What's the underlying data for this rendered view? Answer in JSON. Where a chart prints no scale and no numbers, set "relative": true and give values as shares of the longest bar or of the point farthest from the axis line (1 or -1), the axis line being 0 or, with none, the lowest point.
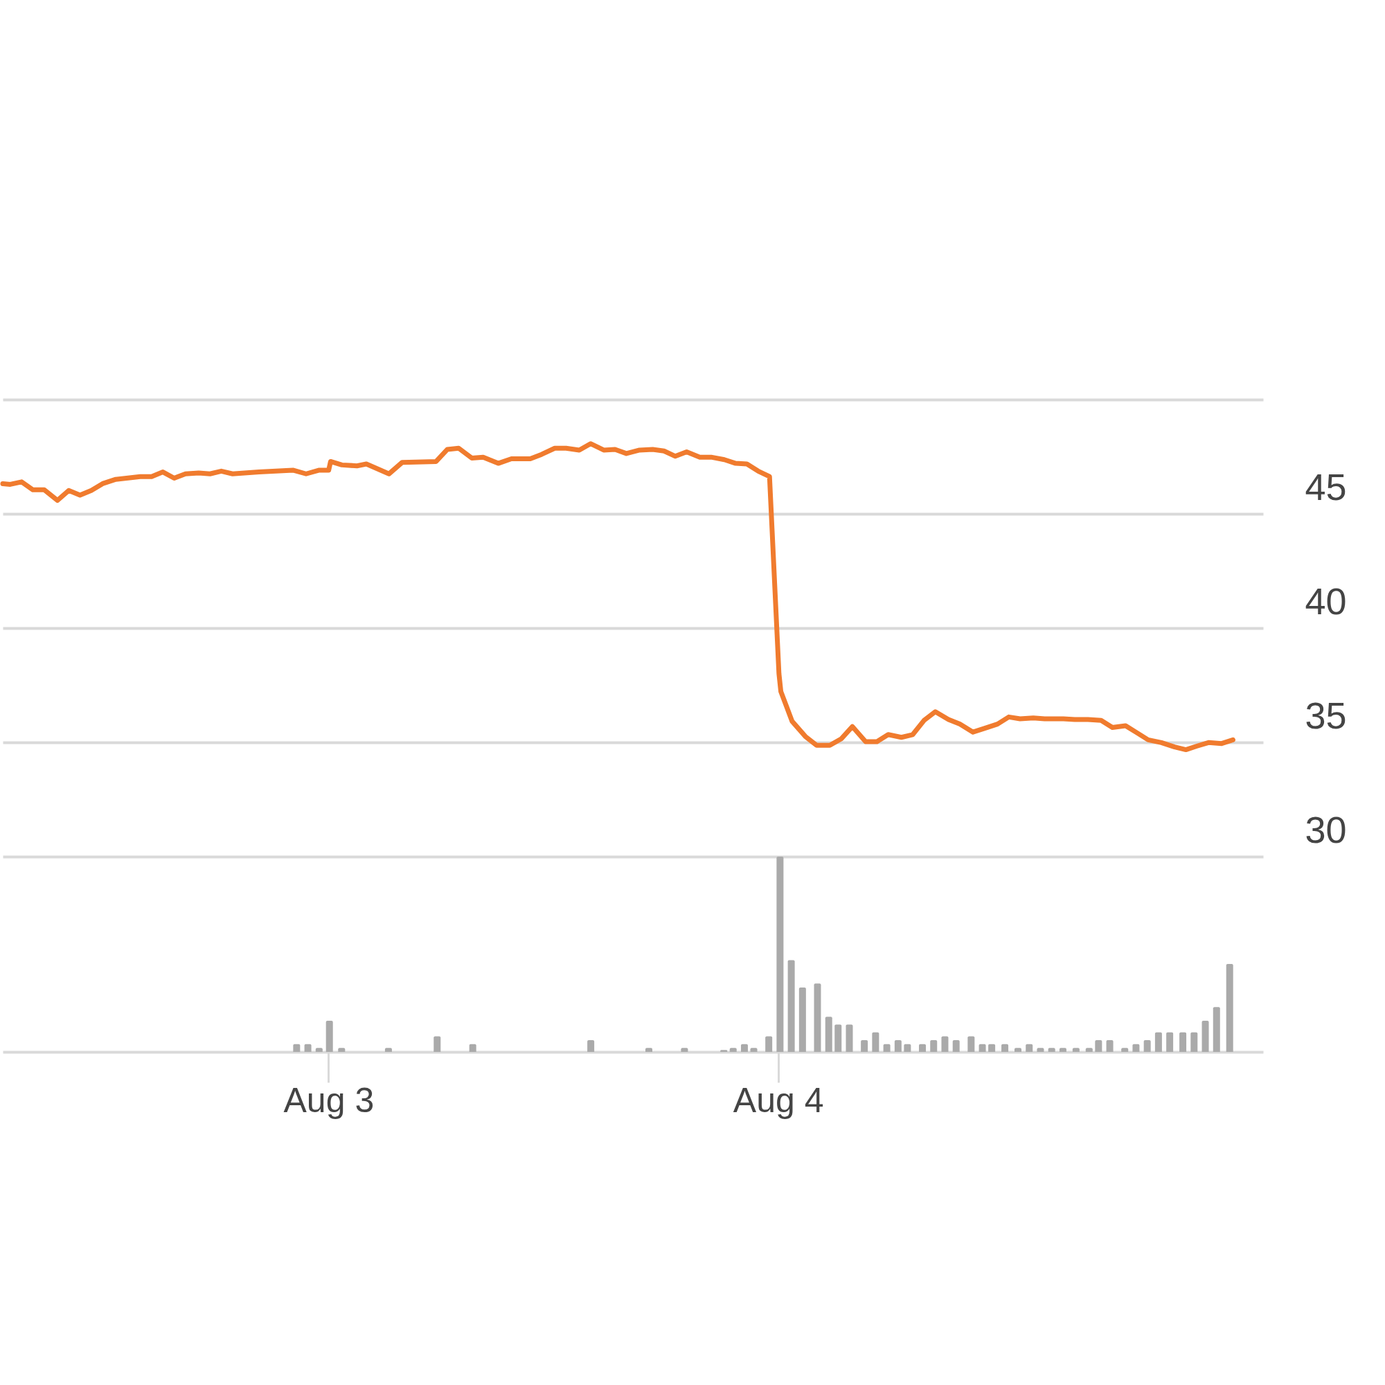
{
  "chart_data": [
    {
      "type": "line",
      "tick_labels": "y",
      "grid": "y",
      "xlim": [
        "--08-02T06:48",
        "--08-05T01:42"
      ],
      "xticks": [
        {
          "value": "--08-03",
          "label": "Aug 3"
        },
        {
          "value": "--08-04",
          "label": "Aug 4"
        }
      ],
      "ylim": [
        30,
        50
      ],
      "yticks": [
        30,
        35,
        40,
        45,
        {
          "value": 50,
          "label": null
        }
      ],
      "series": [
        {
          "color": "#f07b2e",
          "x": [
            "--08-02T06:48",
            "--08-02T07:12",
            "--08-02T07:48",
            "--08-02T08:24",
            "--08-02T09:00",
            "--08-02T09:42",
            "--08-02T10:18",
            "--08-02T10:54",
            "--08-02T11:30",
            "--08-02T12:06",
            "--08-02T12:48",
            "--08-02T14:06",
            "--08-02T14:42",
            "--08-02T15:18",
            "--08-02T15:54",
            "--08-02T16:30",
            "--08-02T17:12",
            "--08-02T17:48",
            "--08-02T18:24",
            "--08-02T19:00",
            "--08-02T20:24",
            "--08-02T22:12",
            "--08-02T22:54",
            "--08-02T23:36",
            "--08-03T00:06",
            "--08-03T00:12",
            "--08-03T00:48",
            "--08-03T01:36",
            "--08-03T02:06",
            "--08-03T03:18",
            "--08-03T04:00",
            "--08-03T05:48",
            "--08-03T06:24",
            "--08-03T07:00",
            "--08-03T07:42",
            "--08-03T08:18",
            "--08-03T09:06",
            "--08-03T09:48",
            "--08-03T10:48",
            "--08-03T11:24",
            "--08-03T12:06",
            "--08-03T12:42",
            "--08-03T13:24",
            "--08-03T14:00",
            "--08-03T14:42",
            "--08-03T15:18",
            "--08-03T15:54",
            "--08-03T16:36",
            "--08-03T17:18",
            "--08-03T17:54",
            "--08-03T18:30",
            "--08-03T19:06",
            "--08-03T19:48",
            "--08-03T20:24",
            "--08-03T21:06",
            "--08-03T21:42",
            "--08-03T22:18",
            "--08-03T22:54",
            "--08-03T23:30",
            "--08-04T00:00",
            "--08-04T00:06",
            "--08-04T00:42",
            "--08-04T01:24",
            "--08-04T02:00",
            "--08-04T02:42",
            "--08-04T03:18",
            "--08-04T03:54",
            "--08-04T04:36",
            "--08-04T05:12",
            "--08-04T05:48",
            "--08-04T06:30",
            "--08-04T07:06",
            "--08-04T07:42",
            "--08-04T08:18",
            "--08-04T09:00",
            "--08-04T09:36",
            "--08-04T10:18",
            "--08-04T10:54",
            "--08-04T11:36",
            "--08-04T12:12",
            "--08-04T12:48",
            "--08-04T13:30",
            "--08-04T14:06",
            "--08-04T15:06",
            "--08-04T15:42",
            "--08-04T16:24",
            "--08-04T17:06",
            "--08-04T17:42",
            "--08-04T18:24",
            "--08-04T19:00",
            "--08-04T19:36",
            "--08-04T20:18",
            "--08-04T21:00",
            "--08-04T21:36",
            "--08-04T22:12",
            "--08-04T22:48",
            "--08-04T23:30",
            "--08-05T00:06"
          ],
          "values": [
            46.32,
            46.29,
            46.4,
            46.05,
            46.05,
            45.59,
            46.02,
            45.82,
            46.02,
            46.32,
            46.51,
            46.63,
            46.63,
            46.83,
            46.56,
            46.75,
            46.79,
            46.75,
            46.87,
            46.75,
            46.83,
            46.91,
            46.75,
            46.91,
            46.91,
            47.29,
            47.14,
            47.1,
            47.18,
            46.75,
            47.25,
            47.29,
            47.82,
            47.87,
            47.44,
            47.48,
            47.21,
            47.41,
            47.41,
            47.6,
            47.87,
            47.87,
            47.79,
            48.07,
            47.79,
            47.82,
            47.64,
            47.79,
            47.82,
            47.75,
            47.52,
            47.71,
            47.48,
            47.48,
            47.37,
            47.21,
            47.18,
            46.87,
            46.63,
            38.01,
            37.23,
            35.92,
            35.26,
            34.87,
            34.87,
            35.15,
            35.69,
            35.03,
            35.03,
            35.34,
            35.22,
            35.34,
            35.96,
            36.34,
            36.0,
            35.8,
            35.45,
            35.61,
            35.8,
            36.11,
            36.03,
            36.07,
            36.03,
            36.03,
            36.0,
            36.0,
            35.96,
            35.65,
            35.73,
            35.42,
            35.11,
            34.99,
            34.8,
            34.68,
            34.84,
            34.99,
            34.95,
            35.11
          ]
        }
      ]
    },
    {
      "type": "bar",
      "relative": true,
      "tick_labels": "x",
      "xlim": [
        "--08-02T06:48",
        "--08-05T01:42"
      ],
      "xticks": [
        {
          "value": "--08-03",
          "label": "Aug 3"
        },
        {
          "value": "--08-04",
          "label": "Aug 4"
        }
      ],
      "series": [
        {
          "color": "#aaaaaa",
          "x": [
            "--08-02T22:18",
            "--08-02T22:54",
            "--08-02T23:30",
            "--08-03T00:03",
            "--08-03T00:42",
            "--08-03T03:12",
            "--08-03T05:48",
            "--08-03T07:42",
            "--08-03T14:00",
            "--08-03T17:06",
            "--08-03T19:00",
            "--08-03T21:06",
            "--08-03T21:36",
            "--08-03T22:12",
            "--08-03T22:42",
            "--08-03T23:30",
            "--08-04T00:06",
            "--08-04T00:42",
            "--08-04T01:18",
            "--08-04T02:06",
            "--08-04T02:42",
            "--08-04T03:12",
            "--08-04T03:48",
            "--08-04T04:36",
            "--08-04T05:12",
            "--08-04T05:48",
            "--08-04T06:24",
            "--08-04T06:54",
            "--08-04T07:42",
            "--08-04T08:18",
            "--08-04T08:54",
            "--08-04T09:30",
            "--08-04T10:18",
            "--08-04T10:54",
            "--08-04T11:24",
            "--08-04T12:06",
            "--08-04T12:48",
            "--08-04T13:24",
            "--08-04T14:00",
            "--08-04T14:36",
            "--08-04T15:12",
            "--08-04T15:54",
            "--08-04T16:36",
            "--08-04T17:06",
            "--08-04T17:42",
            "--08-04T18:30",
            "--08-04T19:06",
            "--08-04T19:42",
            "--08-04T20:18",
            "--08-04T20:54",
            "--08-04T21:36",
            "--08-04T22:12",
            "--08-04T22:48",
            "--08-04T23:24",
            "--08-05T00:06"
          ],
          "values": [
            0.04,
            0.04,
            0.02,
            0.16,
            0.02,
            0.02,
            0.08,
            0.04,
            0.06,
            0.02,
            0.02,
            0.01,
            0.02,
            0.04,
            0.02,
            0.08,
            1,
            0.47,
            0.33,
            0.35,
            0.18,
            0.14,
            0.14,
            0.06,
            0.1,
            0.04,
            0.06,
            0.04,
            0.04,
            0.06,
            0.08,
            0.06,
            0.08,
            0.04,
            0.04,
            0.04,
            0.02,
            0.04,
            0.02,
            0.02,
            0.02,
            0.02,
            0.02,
            0.06,
            0.06,
            0.02,
            0.04,
            0.06,
            0.1,
            0.1,
            0.1,
            0.1,
            0.16,
            0.23,
            0.45
          ]
        }
      ]
    }
  ]
}
